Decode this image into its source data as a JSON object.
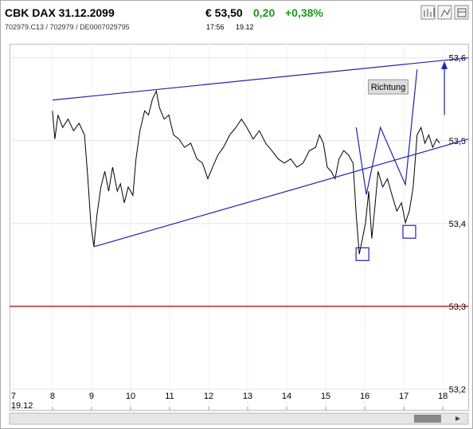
{
  "header": {
    "title": "CBK DAX 31.12.2099",
    "ids": "702979.C13  /  702979  /  DE0007029795",
    "price": "€ 53,50",
    "change": "0,20",
    "change_pct": "+0,38%",
    "time": "17:56",
    "date": "19.12"
  },
  "chart_data": {
    "type": "line",
    "x_date_label": "19.12",
    "x": [
      8.0,
      8.06,
      8.14,
      8.26,
      8.4,
      8.54,
      8.68,
      8.82,
      8.9,
      8.98,
      9.06,
      9.14,
      9.24,
      9.34,
      9.44,
      9.54,
      9.66,
      9.74,
      9.84,
      9.94,
      10.06,
      10.14,
      10.24,
      10.36,
      10.46,
      10.56,
      10.66,
      10.74,
      10.86,
      10.98,
      11.1,
      11.24,
      11.38,
      11.54,
      11.7,
      11.84,
      11.98,
      12.1,
      12.24,
      12.38,
      12.54,
      12.7,
      12.84,
      12.98,
      13.14,
      13.3,
      13.46,
      13.62,
      13.78,
      13.94,
      14.1,
      14.26,
      14.42,
      14.58,
      14.74,
      14.84,
      14.94,
      15.04,
      15.14,
      15.24,
      15.34,
      15.46,
      15.58,
      15.7,
      15.78,
      15.86,
      15.94,
      16.02,
      16.1,
      16.18,
      16.26,
      16.34,
      16.46,
      16.58,
      16.7,
      16.82,
      16.94,
      17.04,
      17.14,
      17.24,
      17.34,
      17.44,
      17.54,
      17.64,
      17.74,
      17.84,
      17.92
    ],
    "series": [
      {
        "color": "#000000",
        "values": [
          53.536,
          53.502,
          53.531,
          53.516,
          53.526,
          53.512,
          53.521,
          53.507,
          53.459,
          53.401,
          53.372,
          53.411,
          53.444,
          53.463,
          53.439,
          53.468,
          53.439,
          53.448,
          53.425,
          53.444,
          53.434,
          53.478,
          53.512,
          53.536,
          53.531,
          53.55,
          53.56,
          53.54,
          53.526,
          53.531,
          53.507,
          53.502,
          53.492,
          53.497,
          53.478,
          53.473,
          53.454,
          53.468,
          53.483,
          53.492,
          53.507,
          53.516,
          53.526,
          53.516,
          53.502,
          53.512,
          53.497,
          53.488,
          53.478,
          53.473,
          53.478,
          53.468,
          53.473,
          53.488,
          53.492,
          53.507,
          53.497,
          53.468,
          53.463,
          53.454,
          53.478,
          53.488,
          53.483,
          53.473,
          53.411,
          53.363,
          53.382,
          53.401,
          53.439,
          53.382,
          53.42,
          53.463,
          53.444,
          53.454,
          53.434,
          53.415,
          53.425,
          53.401,
          53.415,
          53.444,
          53.507,
          53.516,
          53.497,
          53.507,
          53.492,
          53.502,
          53.497
        ]
      }
    ],
    "xlim": [
      6.9,
      18.65
    ],
    "xticks": [
      7,
      8,
      9,
      10,
      11,
      12,
      13,
      14,
      15,
      16,
      17,
      18
    ],
    "ylim": [
      53.175,
      53.617
    ],
    "yticks": [
      {
        "value": 53.2,
        "label": "53,2"
      },
      {
        "value": 53.3,
        "label": "53,3"
      },
      {
        "value": 53.4,
        "label": "53,4"
      },
      {
        "value": 53.5,
        "label": "53,5"
      },
      {
        "value": 53.6,
        "label": "53,6"
      }
    ],
    "grid": true,
    "reference_line": {
      "value": 53.3,
      "color": "#aa0000"
    },
    "drawings": {
      "color": "#2222aa",
      "lines": [
        {
          "x": [
            8.0,
            18.65
          ],
          "y": [
            53.549,
            53.6
          ]
        },
        {
          "x": [
            9.06,
            18.65
          ],
          "y": [
            53.372,
            53.502
          ]
        },
        {
          "x": [
            15.78,
            16.04,
            16.4,
            17.04,
            17.34
          ],
          "y": [
            53.516,
            53.435,
            53.516,
            53.447,
            53.586
          ]
        }
      ],
      "arrow": {
        "x": 18.04,
        "y": [
          53.531,
          53.596
        ]
      },
      "boxes": [
        {
          "x": 15.94,
          "y": 53.363
        },
        {
          "x": 17.14,
          "y": 53.39
        }
      ],
      "label": {
        "text": "Richtung",
        "x": 16.6,
        "y": 53.565
      }
    }
  }
}
